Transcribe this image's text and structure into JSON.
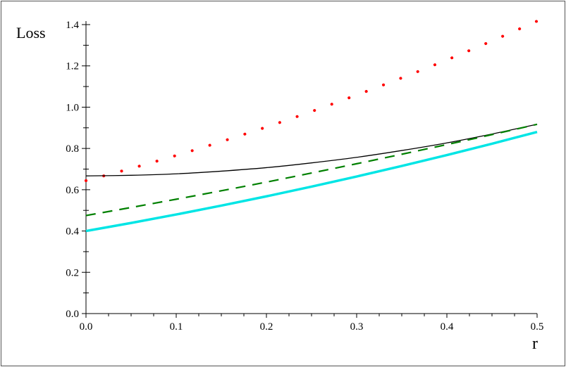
{
  "chart_data": {
    "type": "line",
    "xlabel": "r",
    "ylabel": "Loss",
    "xlim": [
      0,
      0.5
    ],
    "ylim": [
      0,
      1.4
    ],
    "xticks": [
      "0.0",
      "0.1",
      "0.2",
      "0.3",
      "0.4",
      "0.5"
    ],
    "yticks": [
      "0.0",
      "0.2",
      "0.4",
      "0.6",
      "0.8",
      "1.0",
      "1.2",
      "1.4"
    ],
    "grid": false,
    "x": [
      0,
      0.05,
      0.1,
      0.15,
      0.2,
      0.25,
      0.3,
      0.35,
      0.4,
      0.45,
      0.5
    ],
    "series": [
      {
        "color": "#ff0000",
        "style": "dotted",
        "values": [
          0.644,
          0.703,
          0.766,
          0.833,
          0.904,
          0.979,
          1.059,
          1.142,
          1.229,
          1.321,
          1.417
        ]
      },
      {
        "color": "#000000",
        "style": "solid",
        "values": [
          0.667,
          0.67,
          0.677,
          0.69,
          0.707,
          0.73,
          0.757,
          0.79,
          0.827,
          0.87,
          0.917
        ]
      },
      {
        "color": "#008000",
        "style": "dashed",
        "values": [
          0.475,
          0.514,
          0.554,
          0.595,
          0.637,
          0.681,
          0.726,
          0.772,
          0.819,
          0.867,
          0.917
        ]
      },
      {
        "color": "#00e5e5",
        "style": "solid-thick",
        "values": [
          0.4,
          0.439,
          0.48,
          0.523,
          0.568,
          0.615,
          0.664,
          0.715,
          0.768,
          0.823,
          0.88
        ]
      }
    ]
  }
}
